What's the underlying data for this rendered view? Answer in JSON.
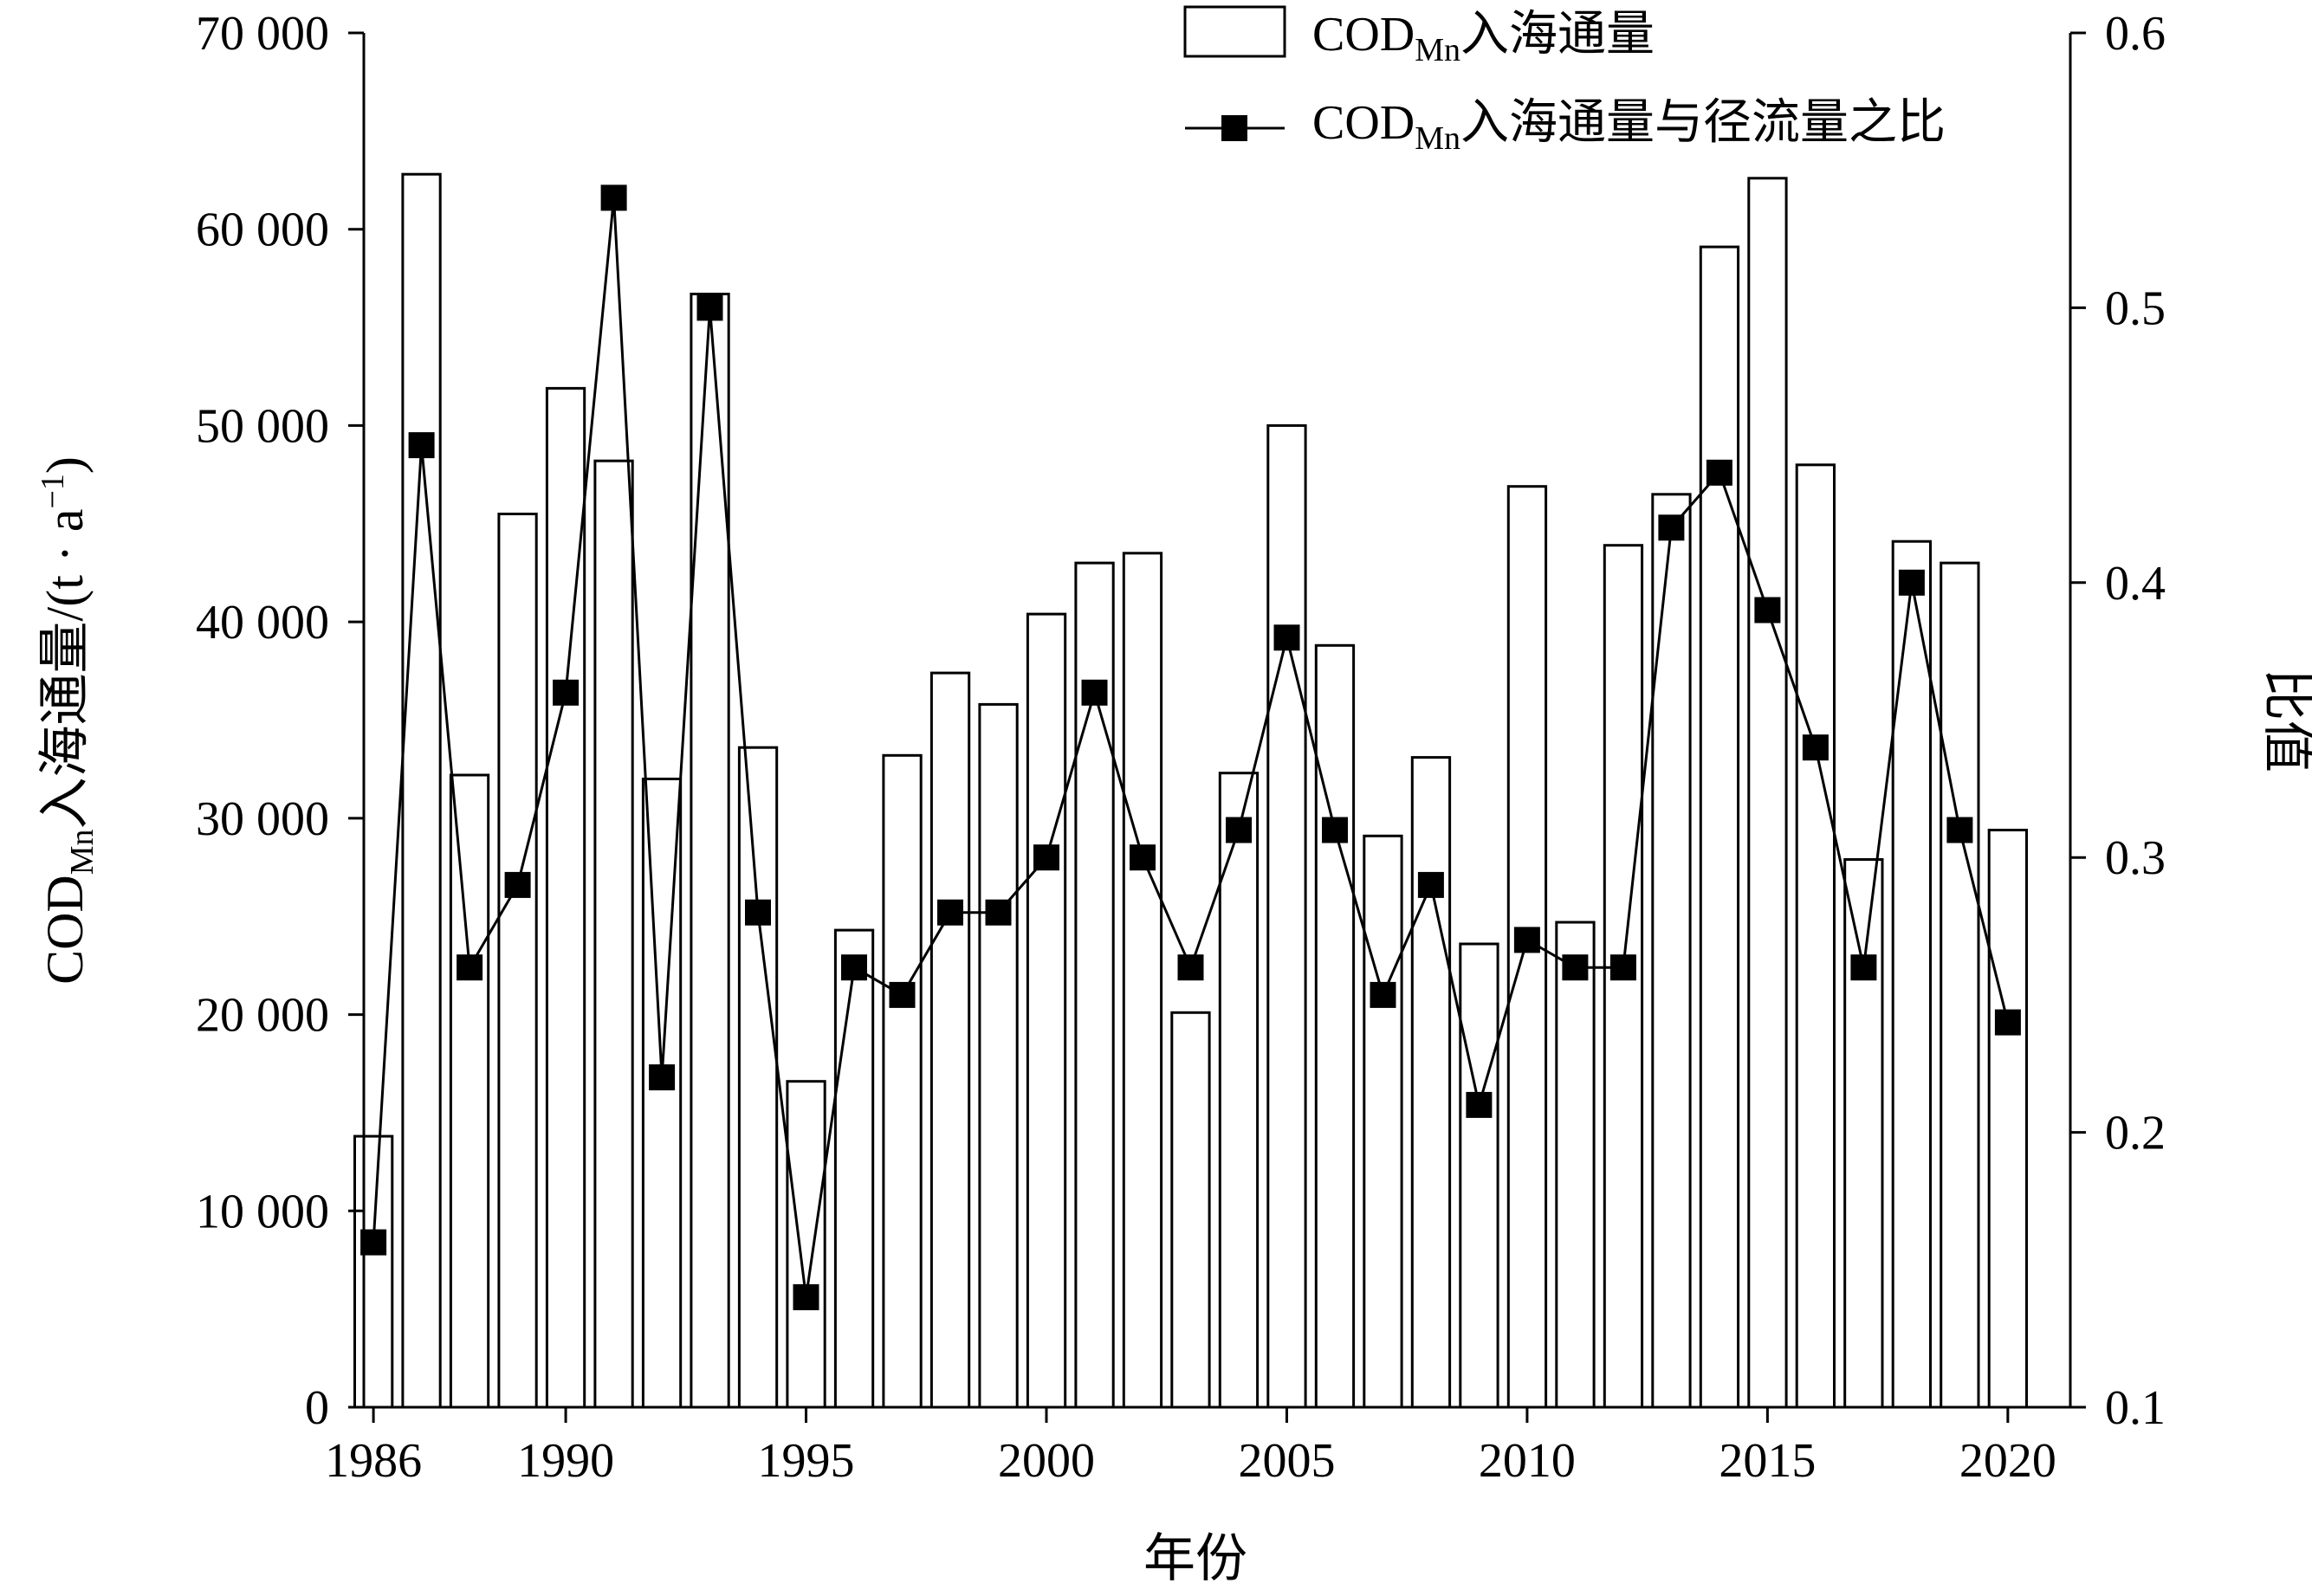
{
  "chart_data": {
    "type": "bar+line",
    "x_title": "年份",
    "y_left_title": {
      "main": "COD",
      "sub": "Mn",
      "rest": "入海通量/(t · a",
      "sup": "−1",
      "tail": ")"
    },
    "y_right_title": "比值",
    "x_ticks": [
      "1986",
      "1990",
      "1995",
      "2000",
      "2005",
      "2010",
      "2015",
      "2020"
    ],
    "y_left_ticks": [
      "0",
      "10 000",
      "20 000",
      "30 000",
      "40 000",
      "50 000",
      "60 000",
      "70 000"
    ],
    "y_right_ticks": [
      "0.1",
      "0.2",
      "0.3",
      "0.4",
      "0.5",
      "0.6"
    ],
    "y_left_range": [
      0,
      70000
    ],
    "y_right_range": [
      0.1,
      0.6
    ],
    "x_range": [
      1985.8,
      2021.3
    ],
    "legend": {
      "placement": "top-right",
      "bar_label": {
        "main": "COD",
        "sub": "Mn",
        "rest": "入海通量"
      },
      "line_label": {
        "main": "COD",
        "sub": "Mn",
        "rest": "入海通量与径流量之比"
      }
    },
    "years": [
      1986,
      1987,
      1988,
      1989,
      1990,
      1991,
      1992,
      1993,
      1994,
      1995,
      1996,
      1997,
      1998,
      1999,
      2000,
      2001,
      2002,
      2003,
      2004,
      2005,
      2006,
      2007,
      2008,
      2009,
      2010,
      2011,
      2012,
      2013,
      2014,
      2015,
      2016,
      2017,
      2018,
      2019,
      2020
    ],
    "series": [
      {
        "type": "bar",
        "axis": "left",
        "values": [
          13800,
          62800,
          32200,
          45500,
          51900,
          48200,
          32000,
          56700,
          33600,
          16600,
          24300,
          33200,
          37400,
          35800,
          40400,
          43000,
          43500,
          20100,
          32300,
          50000,
          38800,
          29100,
          33100,
          23600,
          46900,
          24700,
          43900,
          46500,
          59100,
          62600,
          48000,
          27900,
          44100,
          43000,
          29400
        ]
      },
      {
        "type": "line",
        "axis": "right",
        "values": [
          0.16,
          0.45,
          0.26,
          0.29,
          0.36,
          0.54,
          0.22,
          0.5,
          0.28,
          0.14,
          0.26,
          0.25,
          0.28,
          0.28,
          0.3,
          0.36,
          0.3,
          0.26,
          0.31,
          0.38,
          0.31,
          0.25,
          0.29,
          0.21,
          0.27,
          0.26,
          0.26,
          0.42,
          0.44,
          0.39,
          0.34,
          0.26,
          0.4,
          0.31,
          0.24
        ]
      }
    ]
  }
}
